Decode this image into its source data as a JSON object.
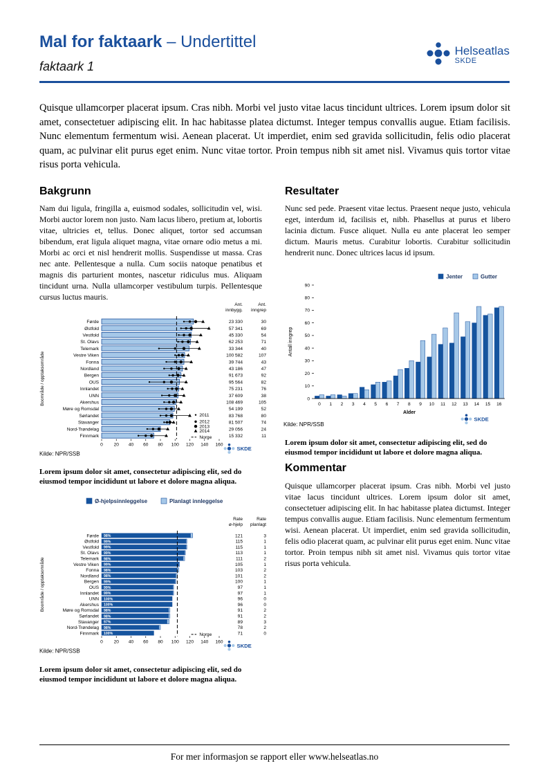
{
  "colors": {
    "accent": "#1A4F9C",
    "dark_bar": "#15549E",
    "light_bar": "#A6C8E8",
    "bar_border": "#1A4F9C",
    "marker": "#000000",
    "legend_text": "#1F3864"
  },
  "header": {
    "title": "Mal for faktaark",
    "subtitle": " – Undertittel",
    "pagename": "faktaark 1",
    "logo_name": "Helseatlas",
    "logo_sub": "SKDE"
  },
  "intro": "Quisque ullamcorper placerat ipsum. Cras nibh. Morbi vel justo vitae lacus tincidunt ultrices. Lorem ipsum dolor sit amet, consectetuer adipiscing elit. In hac habitasse platea dictumst. Integer tempus convallis augue. Etiam facilisis. Nunc elementum fermentum wisi. Aenean placerat. Ut imperdiet, enim sed gravida sollicitudin, felis odio placerat quam, ac pulvinar elit purus eget enim. Nunc vitae tortor. Proin tempus nibh sit amet nisl. Vivamus quis tortor vitae risus porta vehicula.",
  "sections": {
    "bakgrunn": {
      "heading": "Bakgrunn",
      "body": "Nam dui ligula, fringilla a, euismod sodales, sollicitudin vel, wisi. Morbi auctor lorem non justo. Nam lacus libero, pretium at, lobortis vitae, ultricies et, tellus. Donec aliquet, tortor sed accumsan bibendum, erat ligula aliquet magna, vitae ornare odio metus a mi. Morbi ac orci et nisl hendrerit mollis. Suspendisse ut massa. Cras nec ante. Pellentesque a nulla. Cum sociis natoque penatibus et magnis dis parturient montes, nascetur ridiculus mus. Aliquam tincidunt urna. Nulla ullamcorper vestibulum turpis. Pellentesque cursus luctus mauris."
    },
    "resultater": {
      "heading": "Resultater",
      "body": "Nunc sed pede. Praesent vitae lectus. Praesent neque justo, vehicula eget, interdum id, facilisis et, nibh. Phasellus at purus et libero lacinia dictum. Fusce aliquet. Nulla eu ante placerat leo semper dictum. Mauris metus. Curabitur lobortis. Curabitur sollicitudin hendrerit nunc. Donec ultrices lacus id ipsum."
    },
    "kommentar": {
      "heading": "Kommentar",
      "body": "Quisque ullamcorper placerat ipsum. Cras nibh. Morbi vel justo vitae lacus tincidunt ultrices. Lorem ipsum dolor sit amet, consectetuer adipiscing elit. In hac habitasse platea dictumst. Integer tempus convallis augue. Etiam facilisis. Nunc elementum fermentum wisi. Aenean placerat. Ut imperdiet, enim sed gravida sollicitudin, felis odio placerat quam, ac pulvinar elit purus eget enim. Nunc vitae tortor. Proin tempus nibh sit amet nisl. Vivamus quis tortor vitae risus porta vehicula."
    }
  },
  "captions": {
    "chart1": "Lorem ipsum dolor sit amet, consectetur adipiscing elit, sed do eiusmod tempor incididunt ut labore et dolore magna aliqua.",
    "chart2": "Lorem ipsum dolor sit amet, consectetur adipiscing elit, sed do eiusmod tempor incididunt ut labore et dolore magna aliqua.",
    "chart3": "Lorem ipsum dolor sit amet, consectetur adipiscing elit, sed do eiusmod tempor incididunt ut labore et dolore magna aliqua."
  },
  "footer": {
    "text": "For mer informasjon se rapport eller www.helseatlas.no"
  },
  "chart_data": [
    {
      "type": "bar",
      "orientation": "horizontal",
      "ylabel": "Boområde / opptaksområde",
      "source": "Kilde: NPR/SSB",
      "xlim": [
        0,
        160
      ],
      "xticks": [
        0,
        20,
        40,
        60,
        80,
        100,
        120,
        140,
        160
      ],
      "col_headers": [
        [
          "Ant.",
          "innbygg."
        ],
        [
          "Ant.",
          "inngrep"
        ]
      ],
      "legend": [
        {
          "label": "2011",
          "marker": "dot-small"
        },
        {
          "label": "2012",
          "marker": "dot-medium"
        },
        {
          "label": "2013",
          "marker": "dot-large"
        },
        {
          "label": "2014",
          "marker": "triangle"
        },
        {
          "label": "Norge",
          "marker": "dashed-line"
        }
      ],
      "norge": 102,
      "rows": [
        {
          "name": "Førde",
          "bar": 125,
          "points": [
            112,
            120,
            128,
            138
          ],
          "innbygg": "23 330",
          "inngrep": "30"
        },
        {
          "name": "Østfold",
          "bar": 123,
          "points": [
            108,
            115,
            122,
            146
          ],
          "innbygg": "57 341",
          "inngrep": "69"
        },
        {
          "name": "Vestfold",
          "bar": 122,
          "points": [
            105,
            112,
            120,
            135
          ],
          "innbygg": "45 330",
          "inngrep": "54"
        },
        {
          "name": "St. Olavs",
          "bar": 121,
          "points": [
            104,
            110,
            118,
            130
          ],
          "innbygg": "62 253",
          "inngrep": "71"
        },
        {
          "name": "Telemark",
          "bar": 119,
          "points": [
            78,
            100,
            112,
            133
          ],
          "innbygg": "33 344",
          "inngrep": "40"
        },
        {
          "name": "Vestre Viken",
          "bar": 113,
          "points": [
            100,
            105,
            110,
            118
          ],
          "innbygg": "100 582",
          "inngrep": "107"
        },
        {
          "name": "Fonna",
          "bar": 112,
          "points": [
            88,
            100,
            108,
            122
          ],
          "innbygg": "39 744",
          "inngrep": "43"
        },
        {
          "name": "Nordland",
          "bar": 110,
          "points": [
            85,
            95,
            105,
            115
          ],
          "innbygg": "43 186",
          "inngrep": "47"
        },
        {
          "name": "Bergen",
          "bar": 108,
          "points": [
            92,
            97,
            104,
            112
          ],
          "innbygg": "91 673",
          "inngrep": "92"
        },
        {
          "name": "OUS",
          "bar": 106,
          "points": [
            65,
            85,
            95,
            115
          ],
          "innbygg": "95 564",
          "inngrep": "82"
        },
        {
          "name": "Innlandet",
          "bar": 105,
          "points": [
            90,
            96,
            102,
            110
          ],
          "innbygg": "75 231",
          "inngrep": "76"
        },
        {
          "name": "UNN",
          "bar": 104,
          "points": [
            82,
            92,
            100,
            112
          ],
          "innbygg": "37 609",
          "inngrep": "38"
        },
        {
          "name": "Akershus",
          "bar": 101,
          "points": [
            85,
            92,
            98,
            108
          ],
          "innbygg": "108 469",
          "inngrep": "105"
        },
        {
          "name": "Møre og Romsdal",
          "bar": 99,
          "points": [
            78,
            88,
            95,
            105
          ],
          "innbygg": "54 199",
          "inngrep": "52"
        },
        {
          "name": "Sørlandet",
          "bar": 97,
          "points": [
            80,
            88,
            95,
            120
          ],
          "innbygg": "83 768",
          "inngrep": "80"
        },
        {
          "name": "Stavanger",
          "bar": 93,
          "points": [
            85,
            89,
            93,
            98
          ],
          "innbygg": "81 507",
          "inngrep": "74"
        },
        {
          "name": "Nord-Trøndelag",
          "bar": 80,
          "points": [
            62,
            70,
            78,
            90
          ],
          "innbygg": "29 056",
          "inngrep": "24"
        },
        {
          "name": "Finnmark",
          "bar": 71,
          "points": [
            50,
            60,
            68,
            88
          ],
          "innbygg": "15 332",
          "inngrep": "11"
        }
      ]
    },
    {
      "type": "bar",
      "orientation": "vertical",
      "grouped": true,
      "categories": [
        "0",
        "1",
        "2",
        "3",
        "4",
        "5",
        "6",
        "7",
        "8",
        "9",
        "10",
        "11",
        "12",
        "13",
        "14",
        "15",
        "16"
      ],
      "series": [
        {
          "name": "Jenter",
          "values": [
            2,
            2,
            3,
            4,
            9,
            11,
            13,
            18,
            24,
            29,
            33,
            43,
            44,
            49,
            60,
            66,
            72
          ]
        },
        {
          "name": "Gutter",
          "values": [
            3,
            3,
            2,
            4,
            7,
            13,
            14,
            23,
            30,
            46,
            51,
            56,
            68,
            61,
            73,
            67,
            73
          ]
        }
      ],
      "xlabel": "Alder",
      "ylabel": "Antall inngrep",
      "ylim": [
        0,
        90
      ],
      "yticks": [
        0,
        10,
        20,
        30,
        40,
        50,
        60,
        70,
        80,
        90
      ],
      "source": "Kilde: NPR/SSB"
    },
    {
      "type": "bar",
      "orientation": "horizontal",
      "stacked": true,
      "legend": [
        "Ø-hjelpsinnleggelse",
        "Planlagt innleggelse"
      ],
      "col_headers": [
        [
          "Rate",
          "ø-hjelp"
        ],
        [
          "Rate",
          "planlagt"
        ]
      ],
      "ylabel": "Boområde / opptaksområde",
      "source": "Kilde: NPR/SSB",
      "xlim": [
        0,
        160
      ],
      "xticks": [
        0,
        20,
        40,
        60,
        80,
        100,
        120,
        140,
        160
      ],
      "norge": 103,
      "norge_label": "Norge",
      "rows": [
        {
          "name": "Førde",
          "ohjelp": 121,
          "planlagt": 3,
          "pct": "98%"
        },
        {
          "name": "Østfold",
          "ohjelp": 115,
          "planlagt": 1,
          "pct": "99%"
        },
        {
          "name": "Vestfold",
          "ohjelp": 115,
          "planlagt": 1,
          "pct": "99%"
        },
        {
          "name": "St. Olavs",
          "ohjelp": 113,
          "planlagt": 1,
          "pct": "99%"
        },
        {
          "name": "Telemark",
          "ohjelp": 111,
          "planlagt": 2,
          "pct": "98%"
        },
        {
          "name": "Vestre Viken",
          "ohjelp": 105,
          "planlagt": 1,
          "pct": "99%"
        },
        {
          "name": "Fonna",
          "ohjelp": 103,
          "planlagt": 2,
          "pct": "98%"
        },
        {
          "name": "Nordland",
          "ohjelp": 101,
          "planlagt": 2,
          "pct": "98%"
        },
        {
          "name": "Bergen",
          "ohjelp": 100,
          "planlagt": 1,
          "pct": "99%"
        },
        {
          "name": "OUS",
          "ohjelp": 97,
          "planlagt": 1,
          "pct": "99%"
        },
        {
          "name": "Innlandet",
          "ohjelp": 97,
          "planlagt": 1,
          "pct": "99%"
        },
        {
          "name": "UNN",
          "ohjelp": 96,
          "planlagt": 0,
          "pct": "100%"
        },
        {
          "name": "Akershus",
          "ohjelp": 96,
          "planlagt": 0,
          "pct": "100%"
        },
        {
          "name": "Møre og Romsdal",
          "ohjelp": 91,
          "planlagt": 2,
          "pct": "98%"
        },
        {
          "name": "Sørlandet",
          "ohjelp": 91,
          "planlagt": 2,
          "pct": "98%"
        },
        {
          "name": "Stavanger",
          "ohjelp": 89,
          "planlagt": 3,
          "pct": "97%"
        },
        {
          "name": "Nord-Trøndelag",
          "ohjelp": 78,
          "planlagt": 2,
          "pct": "98%"
        },
        {
          "name": "Finnmark",
          "ohjelp": 71,
          "planlagt": 0,
          "pct": "100%"
        }
      ]
    }
  ]
}
